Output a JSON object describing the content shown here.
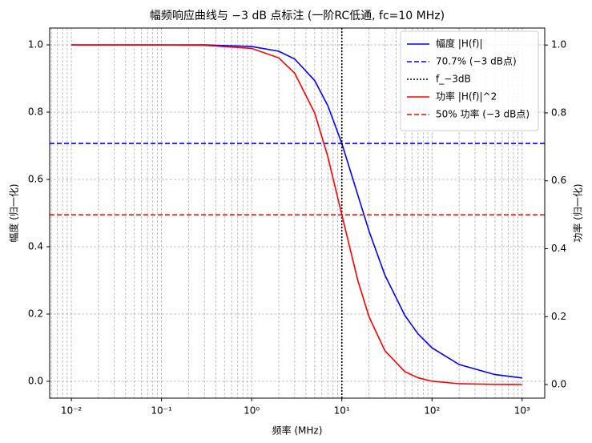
{
  "chart_data": {
    "type": "line",
    "title": "幅频响应曲线与 −3 dB 点标注 (一阶RC低通, fc=10 MHz)",
    "xlabel": "频率 (MHz)",
    "ylabel": "幅度 (归一化)",
    "y2label": "功率 (归一化)",
    "y_color": "#0000ff",
    "y2_color": "#ff0000",
    "xscale": "log",
    "grid": true,
    "legend": "upper right",
    "x": [
      0.01,
      0.1,
      0.3,
      1,
      2,
      3,
      5,
      7,
      10,
      15,
      20,
      30,
      50,
      70,
      100,
      200,
      500,
      1000
    ],
    "xlim": [
      0.00575,
      1780
    ],
    "xticks": [
      {
        "value": 0.01,
        "label": "10⁻²"
      },
      {
        "value": 0.1,
        "label": "10⁻¹"
      },
      {
        "value": 1,
        "label": "10⁰"
      },
      {
        "value": 10,
        "label": "10¹"
      },
      {
        "value": 100,
        "label": "10²"
      },
      {
        "value": 1000,
        "label": "10³"
      }
    ],
    "ylim": [
      -0.05,
      1.05
    ],
    "yticks": [
      {
        "value": 0,
        "label": "0.0"
      },
      0.2,
      0.4,
      0.6,
      0.8,
      {
        "value": 1,
        "label": "1.0"
      }
    ],
    "y2lim": [
      -0.04,
      1.05
    ],
    "y2ticks": [
      {
        "value": 0,
        "label": "0.0"
      },
      0.2,
      0.4,
      0.6,
      0.8,
      {
        "value": 1,
        "label": "1.0"
      }
    ],
    "series": [
      {
        "name": "幅度 |H(f)|",
        "kind": "line",
        "color": "#0000ff",
        "dash": "solid",
        "values": [
          1.0,
          1.0,
          1.0,
          0.995,
          0.981,
          0.958,
          0.894,
          0.819,
          0.707,
          0.555,
          0.447,
          0.316,
          0.196,
          0.141,
          0.0995,
          0.05,
          0.02,
          0.01
        ]
      },
      {
        "name": "70.7% (−3 dB点)",
        "kind": "hline",
        "color": "#0000ff",
        "dash": "dashed",
        "y": 0.707
      },
      {
        "name": "f_−3dB",
        "kind": "vline",
        "color": "#000000",
        "dash": "dotted",
        "x": 10
      },
      {
        "name": "功率 |H(f)|^2",
        "kind": "line",
        "color": "#ff0000",
        "dash": "solid",
        "axis": "y2",
        "values": [
          1.0,
          1.0,
          0.999,
          0.99,
          0.962,
          0.917,
          0.8,
          0.671,
          0.5,
          0.308,
          0.2,
          0.1,
          0.038,
          0.02,
          0.0099,
          0.0025,
          0.0004,
          0.0001
        ]
      },
      {
        "name": "50% 功率 (−3 dB点)",
        "kind": "hline",
        "color": "#ff0000",
        "dash": "dashed",
        "axis": "y2",
        "y": 0.5
      }
    ]
  }
}
